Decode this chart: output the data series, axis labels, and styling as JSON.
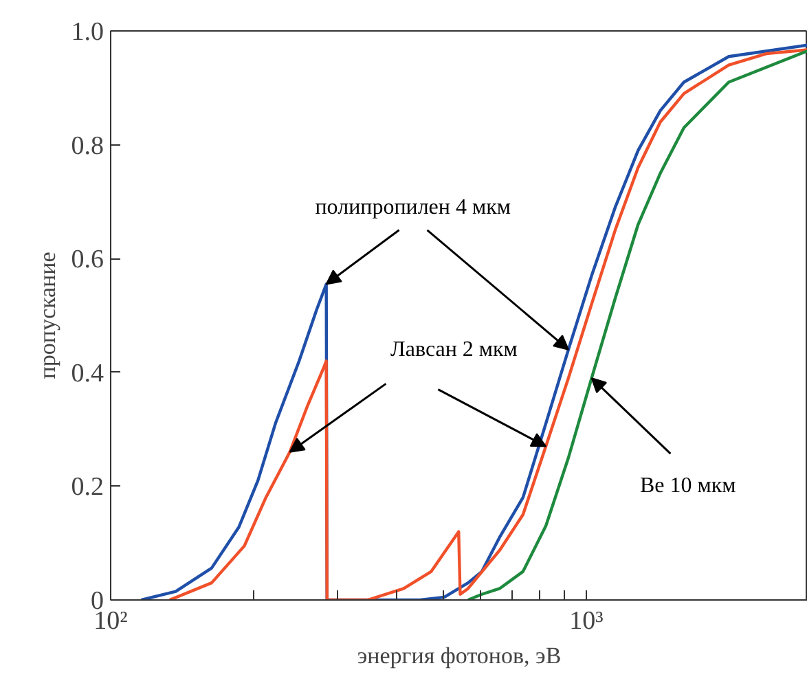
{
  "chart_data": {
    "type": "line",
    "xlabel": "энергия фотонов, эВ",
    "ylabel": "пропускание",
    "log": "x",
    "xlim": [
      100,
      2920
    ],
    "ylim": [
      0,
      1
    ],
    "xticks": [
      {
        "value": 100,
        "label": "10²"
      },
      {
        "value": 200,
        "label": null
      },
      {
        "value": 300,
        "label": null
      },
      {
        "value": 400,
        "label": null
      },
      {
        "value": 500,
        "label": null
      },
      {
        "value": 600,
        "label": null
      },
      {
        "value": 700,
        "label": null
      },
      {
        "value": 800,
        "label": null
      },
      {
        "value": 900,
        "label": null
      },
      {
        "value": 1000,
        "label": "10³"
      }
    ],
    "yticks": [
      0,
      0.2,
      0.4,
      0.6,
      0.8,
      {
        "value": 1,
        "label": "1.0"
      }
    ],
    "annotations": [
      {
        "text": "полипропилен 4 мкм",
        "x": 284,
        "y": 0.555
      },
      {
        "text": "Лавсан 2 мкм",
        "x": 238,
        "y": 0.26
      },
      {
        "text": "Be 10 мкм",
        "x": 1026,
        "y": 0.39
      }
    ],
    "grid": false,
    "marker": "none",
    "line_style": "solid",
    "series": [
      {
        "color": "#1f4fa8",
        "x": [
          116,
          137,
          163,
          186,
          204,
          222,
          249,
          271,
          284,
          285,
          447,
          503,
          564,
          603,
          657,
          736,
          822,
          917,
          1026,
          1150,
          1285,
          1431,
          1604,
          1993,
          2920
        ],
        "values": [
          0,
          0.015,
          0.056,
          0.128,
          0.21,
          0.31,
          0.42,
          0.51,
          0.555,
          0,
          0,
          0.005,
          0.03,
          0.05,
          0.11,
          0.18,
          0.31,
          0.44,
          0.57,
          0.69,
          0.79,
          0.86,
          0.91,
          0.955,
          0.975
        ]
      },
      {
        "color": "#f0502a",
        "x": [
          133,
          163,
          191,
          212,
          238,
          259,
          281,
          284,
          285,
          347,
          413,
          472,
          539,
          543,
          564,
          657,
          736,
          822,
          917,
          1026,
          1150,
          1285,
          1431,
          1604,
          1993,
          2390,
          2920
        ],
        "values": [
          0,
          0.03,
          0.095,
          0.18,
          0.26,
          0.34,
          0.41,
          0.42,
          0,
          0,
          0.02,
          0.05,
          0.12,
          0.01,
          0.02,
          0.087,
          0.15,
          0.27,
          0.39,
          0.52,
          0.65,
          0.76,
          0.84,
          0.89,
          0.94,
          0.96,
          0.967
        ]
      },
      {
        "color": "#1e8a3e",
        "x": [
          564,
          603,
          657,
          736,
          822,
          917,
          1026,
          1150,
          1285,
          1431,
          1604,
          1993,
          2920
        ],
        "values": [
          0,
          0.01,
          0.02,
          0.05,
          0.13,
          0.25,
          0.39,
          0.53,
          0.66,
          0.75,
          0.83,
          0.91,
          0.965
        ]
      }
    ]
  }
}
